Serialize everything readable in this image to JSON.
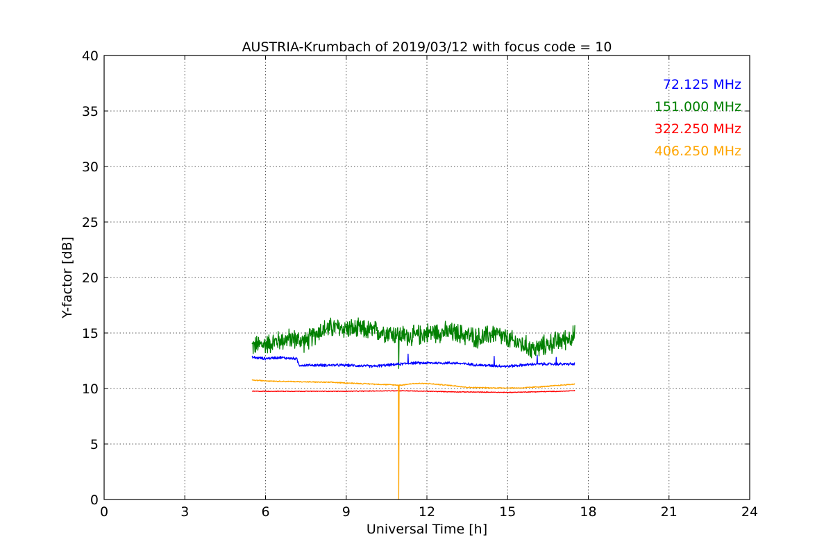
{
  "chart_data": {
    "type": "line",
    "title": "AUSTRIA-Krumbach of 2019/03/12 with focus code = 10",
    "xlabel": "Universal Time [h]",
    "ylabel": "Y-factor [dB]",
    "xlim": [
      0,
      24
    ],
    "ylim": [
      0,
      40
    ],
    "xticks": [
      0,
      3,
      6,
      9,
      12,
      15,
      18,
      21,
      24
    ],
    "yticks": [
      0,
      5,
      10,
      15,
      20,
      25,
      30,
      35,
      40
    ],
    "grid": true,
    "legend_position": "top-right",
    "series": [
      {
        "name": "72.125 MHz",
        "color": "#0000ff",
        "noise": 0.15,
        "points": [
          [
            5.5,
            12.8
          ],
          [
            6.0,
            12.7
          ],
          [
            6.5,
            12.8
          ],
          [
            7.0,
            12.7
          ],
          [
            7.15,
            12.7
          ],
          [
            7.25,
            12.1
          ],
          [
            8.0,
            12.1
          ],
          [
            9.0,
            12.1
          ],
          [
            10.0,
            12.0
          ],
          [
            11.0,
            12.2
          ],
          [
            11.4,
            12.3
          ],
          [
            12.0,
            12.3
          ],
          [
            13.0,
            12.3
          ],
          [
            14.0,
            12.1
          ],
          [
            15.0,
            12.0
          ],
          [
            16.0,
            12.2
          ],
          [
            17.0,
            12.2
          ],
          [
            17.5,
            12.2
          ]
        ],
        "spikes": [
          [
            11.3,
            13.1
          ],
          [
            14.5,
            12.9
          ],
          [
            16.1,
            13.0
          ],
          [
            16.8,
            12.8
          ]
        ]
      },
      {
        "name": "151.000 MHz",
        "color": "#008000",
        "noise": 1.1,
        "points": [
          [
            5.5,
            13.8
          ],
          [
            6.0,
            14.0
          ],
          [
            6.5,
            14.3
          ],
          [
            7.0,
            14.5
          ],
          [
            7.5,
            14.2
          ],
          [
            8.0,
            15.2
          ],
          [
            8.5,
            15.5
          ],
          [
            9.0,
            15.4
          ],
          [
            9.5,
            15.3
          ],
          [
            10.0,
            15.2
          ],
          [
            10.5,
            15.1
          ],
          [
            11.0,
            14.8
          ],
          [
            11.5,
            14.7
          ],
          [
            12.0,
            15.0
          ],
          [
            12.5,
            15.1
          ],
          [
            13.0,
            15.0
          ],
          [
            13.5,
            14.8
          ],
          [
            14.0,
            14.5
          ],
          [
            14.5,
            15.0
          ],
          [
            15.0,
            14.4
          ],
          [
            15.5,
            14.0
          ],
          [
            16.0,
            13.5
          ],
          [
            16.5,
            14.0
          ],
          [
            17.0,
            14.3
          ],
          [
            17.5,
            14.8
          ]
        ],
        "spikes": [
          [
            10.95,
            11.8
          ]
        ]
      },
      {
        "name": "322.250 MHz",
        "color": "#ff0000",
        "noise": 0.04,
        "points": [
          [
            5.5,
            9.75
          ],
          [
            7.0,
            9.75
          ],
          [
            9.0,
            9.75
          ],
          [
            11.0,
            9.8
          ],
          [
            12.0,
            9.75
          ],
          [
            13.0,
            9.7
          ],
          [
            15.0,
            9.65
          ],
          [
            17.0,
            9.75
          ],
          [
            17.5,
            9.8
          ]
        ],
        "spikes": []
      },
      {
        "name": "406.250 MHz",
        "color": "#ffa500",
        "noise": 0.06,
        "points": [
          [
            5.5,
            10.75
          ],
          [
            6.5,
            10.65
          ],
          [
            7.5,
            10.6
          ],
          [
            8.5,
            10.55
          ],
          [
            9.5,
            10.45
          ],
          [
            10.5,
            10.35
          ],
          [
            11.0,
            10.3
          ],
          [
            11.5,
            10.45
          ],
          [
            12.0,
            10.45
          ],
          [
            12.5,
            10.35
          ],
          [
            13.0,
            10.25
          ],
          [
            13.5,
            10.1
          ],
          [
            14.5,
            10.05
          ],
          [
            15.5,
            10.05
          ],
          [
            16.5,
            10.2
          ],
          [
            17.5,
            10.4
          ]
        ],
        "spikes": [
          [
            10.95,
            0.0
          ]
        ]
      }
    ]
  }
}
